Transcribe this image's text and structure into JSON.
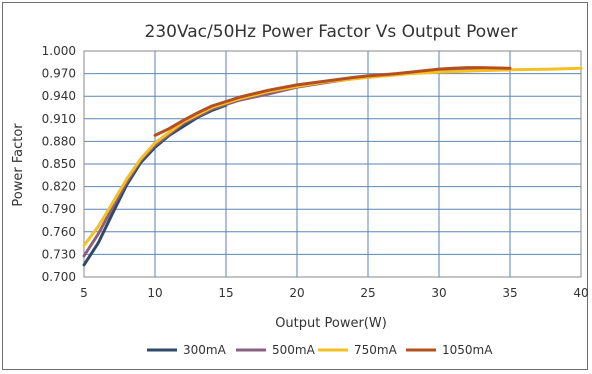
{
  "chart_data": {
    "type": "line",
    "title": "230Vac/50Hz Power Factor Vs Output Power",
    "xlabel": "Output Power(W)",
    "ylabel": "Power Factor",
    "xlim": [
      5,
      40
    ],
    "ylim": [
      0.7,
      1.0
    ],
    "x_ticks": [
      "5",
      "10",
      "15",
      "20",
      "25",
      "30",
      "35",
      "40"
    ],
    "y_ticks": [
      "1.000",
      "0.970",
      "0.940",
      "0.910",
      "0.880",
      "0.850",
      "0.820",
      "0.790",
      "0.760",
      "0.730",
      "0.700"
    ],
    "grid": true,
    "legend_position": "bottom",
    "series": [
      {
        "name": "300mA",
        "color": "#2d4a6a",
        "points": [
          [
            5,
            0.716
          ],
          [
            6,
            0.745
          ],
          [
            7,
            0.784
          ],
          [
            8,
            0.822
          ],
          [
            9,
            0.852
          ],
          [
            10,
            0.872
          ],
          [
            11,
            0.888
          ],
          [
            12,
            0.9
          ],
          [
            13,
            0.912
          ],
          [
            14,
            0.921
          ],
          [
            15,
            0.928
          ]
        ]
      },
      {
        "name": "500mA",
        "color": "#8a6080",
        "points": [
          [
            5,
            0.728
          ],
          [
            6,
            0.757
          ],
          [
            7,
            0.792
          ],
          [
            8,
            0.826
          ],
          [
            9,
            0.855
          ],
          [
            10,
            0.875
          ],
          [
            12,
            0.904
          ],
          [
            14,
            0.923
          ],
          [
            16,
            0.935
          ],
          [
            18,
            0.943
          ],
          [
            20,
            0.952
          ],
          [
            22,
            0.958
          ],
          [
            25,
            0.966
          ],
          [
            28,
            0.971
          ],
          [
            30,
            0.973
          ],
          [
            32,
            0.975
          ],
          [
            35,
            0.975
          ]
        ]
      },
      {
        "name": "750mA",
        "color": "#f5c022",
        "points": [
          [
            5,
            0.742
          ],
          [
            6,
            0.767
          ],
          [
            7,
            0.798
          ],
          [
            8,
            0.83
          ],
          [
            9,
            0.857
          ],
          [
            10,
            0.878
          ],
          [
            12,
            0.906
          ],
          [
            14,
            0.925
          ],
          [
            16,
            0.937
          ],
          [
            18,
            0.946
          ],
          [
            20,
            0.953
          ],
          [
            22,
            0.959
          ],
          [
            25,
            0.965
          ],
          [
            28,
            0.97
          ],
          [
            30,
            0.972
          ],
          [
            33,
            0.974
          ],
          [
            35,
            0.975
          ],
          [
            38,
            0.976
          ],
          [
            40,
            0.977
          ]
        ]
      },
      {
        "name": "1050mA",
        "color": "#b5501e",
        "points": [
          [
            10,
            0.888
          ],
          [
            11,
            0.897
          ],
          [
            12,
            0.908
          ],
          [
            13,
            0.918
          ],
          [
            14,
            0.927
          ],
          [
            15,
            0.933
          ],
          [
            16,
            0.939
          ],
          [
            18,
            0.948
          ],
          [
            20,
            0.955
          ],
          [
            22,
            0.96
          ],
          [
            24,
            0.965
          ],
          [
            25,
            0.967
          ],
          [
            27,
            0.97
          ],
          [
            29,
            0.974
          ],
          [
            30,
            0.976
          ],
          [
            31,
            0.977
          ],
          [
            32,
            0.978
          ],
          [
            33,
            0.978
          ],
          [
            35,
            0.977
          ]
        ]
      }
    ]
  }
}
